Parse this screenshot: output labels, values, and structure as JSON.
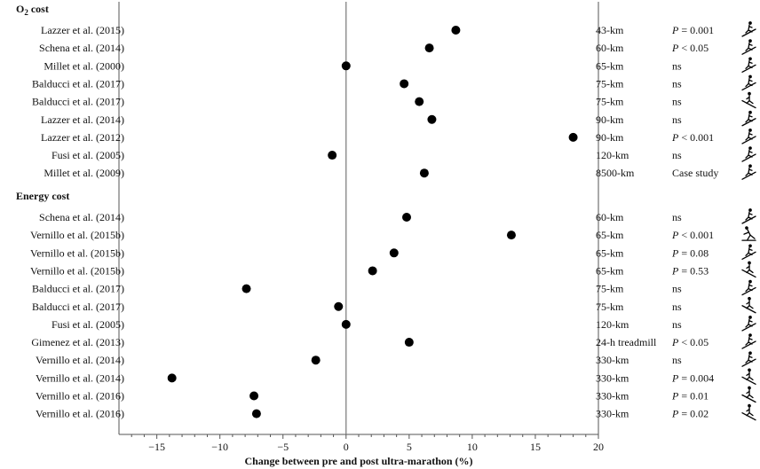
{
  "chart_data": {
    "type": "scatter",
    "xlabel": "Change between pre and post ultra-marathon (%)",
    "xlim": [
      -18,
      20
    ],
    "x_ticks": [
      -15,
      -10,
      -5,
      0,
      5,
      10,
      15,
      20
    ],
    "x_tick_labels": [
      "−15",
      "−10",
      "−5",
      "0",
      "5",
      "10",
      "15",
      "20"
    ],
    "reference_line": 0,
    "marker_color": "#000000",
    "grid": false,
    "legend": "none",
    "groups": [
      {
        "title_main": "O",
        "title_sub": "2",
        "title_rest": " cost",
        "rows": [
          {
            "study": "Lazzer et al. (2015)",
            "x": 8.7,
            "distance": "43-km",
            "p_label": "P",
            "p_text": " = 0.001",
            "terrain": "uphill"
          },
          {
            "study": "Schena et al. (2014)",
            "x": 6.6,
            "distance": "60-km",
            "p_label": "P",
            "p_text": " < 0.05",
            "terrain": "uphill"
          },
          {
            "study": "Millet et al. (2000)",
            "x": 0.0,
            "distance": "65-km",
            "p_label": "",
            "p_text": "ns",
            "terrain": "uphill"
          },
          {
            "study": "Balducci et al. (2017)",
            "x": 4.6,
            "distance": "75-km",
            "p_label": "",
            "p_text": "ns",
            "terrain": "uphill"
          },
          {
            "study": "Balducci et al. (2017)",
            "x": 5.8,
            "distance": "75-km",
            "p_label": "",
            "p_text": "ns",
            "terrain": "downhill"
          },
          {
            "study": "Lazzer et al. (2014)",
            "x": 6.8,
            "distance": "90-km",
            "p_label": "",
            "p_text": "ns",
            "terrain": "uphill"
          },
          {
            "study": "Lazzer et al. (2012)",
            "x": 18.0,
            "distance": "90-km",
            "p_label": "P",
            "p_text": " < 0.001",
            "terrain": "uphill"
          },
          {
            "study": "Fusi et al. (2005)",
            "x": -1.1,
            "distance": "120-km",
            "p_label": "",
            "p_text": "ns",
            "terrain": "uphill"
          },
          {
            "study": "Millet et al. (2009)",
            "x": 6.2,
            "distance": "8500-km",
            "p_label": "",
            "p_text": "Case study",
            "terrain": "uphill"
          }
        ]
      },
      {
        "title_main": "Energy cost",
        "title_sub": "",
        "title_rest": "",
        "rows": [
          {
            "study": "Schena et al. (2014)",
            "x": 4.8,
            "distance": "60-km",
            "p_label": "",
            "p_text": "ns",
            "terrain": "uphill"
          },
          {
            "study": "Vernillo et al. (2015b)",
            "x": 13.1,
            "distance": "65-km",
            "p_label": "P",
            "p_text": " < 0.001",
            "terrain": "level"
          },
          {
            "study": "Vernillo et al. (2015b)",
            "x": 3.8,
            "distance": "65-km",
            "p_label": "P",
            "p_text": " = 0.08",
            "terrain": "uphill"
          },
          {
            "study": "Vernillo et al. (2015b)",
            "x": 2.1,
            "distance": "65-km",
            "p_label": "P",
            "p_text": " = 0.53",
            "terrain": "downhill"
          },
          {
            "study": "Balducci et al. (2017)",
            "x": -7.9,
            "distance": "75-km",
            "p_label": "",
            "p_text": "ns",
            "terrain": "uphill"
          },
          {
            "study": "Balducci et al. (2017)",
            "x": -0.6,
            "distance": "75-km",
            "p_label": "",
            "p_text": "ns",
            "terrain": "downhill"
          },
          {
            "study": "Fusi et al. (2005)",
            "x": 0.0,
            "distance": "120-km",
            "p_label": "",
            "p_text": "ns",
            "terrain": "uphill"
          },
          {
            "study": "Gimenez et al. (2013)",
            "x": 5.0,
            "distance": "24-h treadmill",
            "p_label": "P",
            "p_text": " < 0.05",
            "terrain": "uphill"
          },
          {
            "study": "Vernillo et al. (2014)",
            "x": -2.4,
            "distance": "330-km",
            "p_label": "",
            "p_text": "ns",
            "terrain": "uphill"
          },
          {
            "study": "Vernillo et al. (2014)",
            "x": -13.8,
            "distance": "330-km",
            "p_label": "P",
            "p_text": " = 0.004",
            "terrain": "downhill"
          },
          {
            "study": "Vernillo et al. (2016)",
            "x": -7.3,
            "distance": "330-km",
            "p_label": "P",
            "p_text": " = 0.01",
            "terrain": "downhill"
          },
          {
            "study": "Vernillo et al. (2016)",
            "x": -7.1,
            "distance": "330-km",
            "p_label": "P",
            "p_text": " = 0.02",
            "terrain": "downhill"
          }
        ]
      }
    ]
  }
}
